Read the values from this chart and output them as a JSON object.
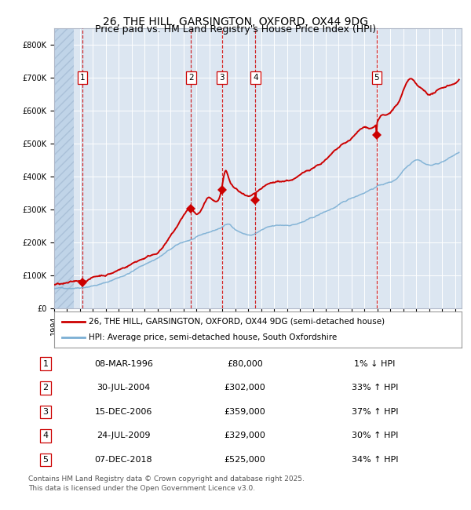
{
  "title_line1": "26, THE HILL, GARSINGTON, OXFORD, OX44 9DG",
  "title_line2": "Price paid vs. HM Land Registry's House Price Index (HPI)",
  "ylim": [
    0,
    850000
  ],
  "xlim_start": 1994.0,
  "xlim_end": 2025.5,
  "yticks": [
    0,
    100000,
    200000,
    300000,
    400000,
    500000,
    600000,
    700000,
    800000
  ],
  "ytick_labels": [
    "£0",
    "£100K",
    "£200K",
    "£300K",
    "£400K",
    "£500K",
    "£600K",
    "£700K",
    "£800K"
  ],
  "plot_bg_color": "#dce6f1",
  "red_line_color": "#cc0000",
  "blue_line_color": "#7bafd4",
  "grid_color": "#ffffff",
  "dashed_line_color": "#cc0000",
  "sale_marker_color": "#cc0000",
  "sale_dates_year": [
    1996.19,
    2004.58,
    2006.96,
    2009.56,
    2018.93
  ],
  "sale_prices": [
    80000,
    302000,
    359000,
    329000,
    525000
  ],
  "sale_labels": [
    "1",
    "2",
    "3",
    "4",
    "5"
  ],
  "legend_line1": "26, THE HILL, GARSINGTON, OXFORD, OX44 9DG (semi-detached house)",
  "legend_line2": "HPI: Average price, semi-detached house, South Oxfordshire",
  "table_rows": [
    [
      "1",
      "08-MAR-1996",
      "£80,000",
      "1% ↓ HPI"
    ],
    [
      "2",
      "30-JUL-2004",
      "£302,000",
      "33% ↑ HPI"
    ],
    [
      "3",
      "15-DEC-2006",
      "£359,000",
      "37% ↑ HPI"
    ],
    [
      "4",
      "24-JUL-2009",
      "£329,000",
      "30% ↑ HPI"
    ],
    [
      "5",
      "07-DEC-2018",
      "£525,000",
      "34% ↑ HPI"
    ]
  ],
  "footer_text": "Contains HM Land Registry data © Crown copyright and database right 2025.\nThis data is licensed under the Open Government Licence v3.0.",
  "title_fontsize": 10,
  "tick_fontsize": 7,
  "legend_fontsize": 7.5,
  "table_fontsize": 8,
  "footer_fontsize": 6.5,
  "hpi_anchors_x": [
    1994,
    1995,
    1996,
    1997,
    1998,
    1999,
    2000,
    2001,
    2002,
    2003,
    2004,
    2005,
    2006,
    2007,
    2007.5,
    2008,
    2008.5,
    2009,
    2009.5,
    2010,
    2011,
    2012,
    2013,
    2014,
    2015,
    2016,
    2017,
    2018,
    2019,
    2019.5,
    2020,
    2020.5,
    2021,
    2021.5,
    2022,
    2022.5,
    2023,
    2023.5,
    2024,
    2024.5,
    2025.3
  ],
  "hpi_anchors_y": [
    60000,
    62000,
    67000,
    75000,
    84000,
    100000,
    118000,
    140000,
    160000,
    185000,
    205000,
    218000,
    232000,
    248000,
    255000,
    242000,
    232000,
    225000,
    228000,
    238000,
    248000,
    250000,
    258000,
    272000,
    290000,
    308000,
    328000,
    348000,
    368000,
    375000,
    380000,
    392000,
    418000,
    438000,
    455000,
    448000,
    440000,
    442000,
    450000,
    460000,
    478000
  ],
  "pp_anchors_x": [
    1994,
    1995,
    1996.0,
    1996.19,
    1996.5,
    1997,
    1998,
    1999,
    2000,
    2001,
    2002,
    2003,
    2004.0,
    2004.58,
    2005,
    2006.0,
    2006.96,
    2007.2,
    2007.5,
    2008,
    2008.5,
    2009.0,
    2009.56,
    2010,
    2011,
    2012,
    2013,
    2014,
    2015,
    2016,
    2017,
    2018.0,
    2018.93,
    2019.2,
    2019.5,
    2020,
    2020.3,
    2020.7,
    2021.0,
    2021.3,
    2021.6,
    2022.0,
    2022.3,
    2022.8,
    2023.0,
    2023.5,
    2024.0,
    2024.3,
    2024.7,
    2025.0,
    2025.3
  ],
  "pp_anchors_y": [
    72000,
    73000,
    78000,
    80000,
    82000,
    90000,
    100000,
    115000,
    135000,
    155000,
    175000,
    220000,
    280000,
    302000,
    285000,
    330000,
    359000,
    408000,
    388000,
    355000,
    340000,
    325000,
    329000,
    340000,
    355000,
    362000,
    375000,
    400000,
    425000,
    455000,
    480000,
    510000,
    525000,
    545000,
    548000,
    555000,
    570000,
    590000,
    618000,
    640000,
    650000,
    630000,
    618000,
    605000,
    600000,
    608000,
    615000,
    622000,
    628000,
    635000,
    645000
  ]
}
